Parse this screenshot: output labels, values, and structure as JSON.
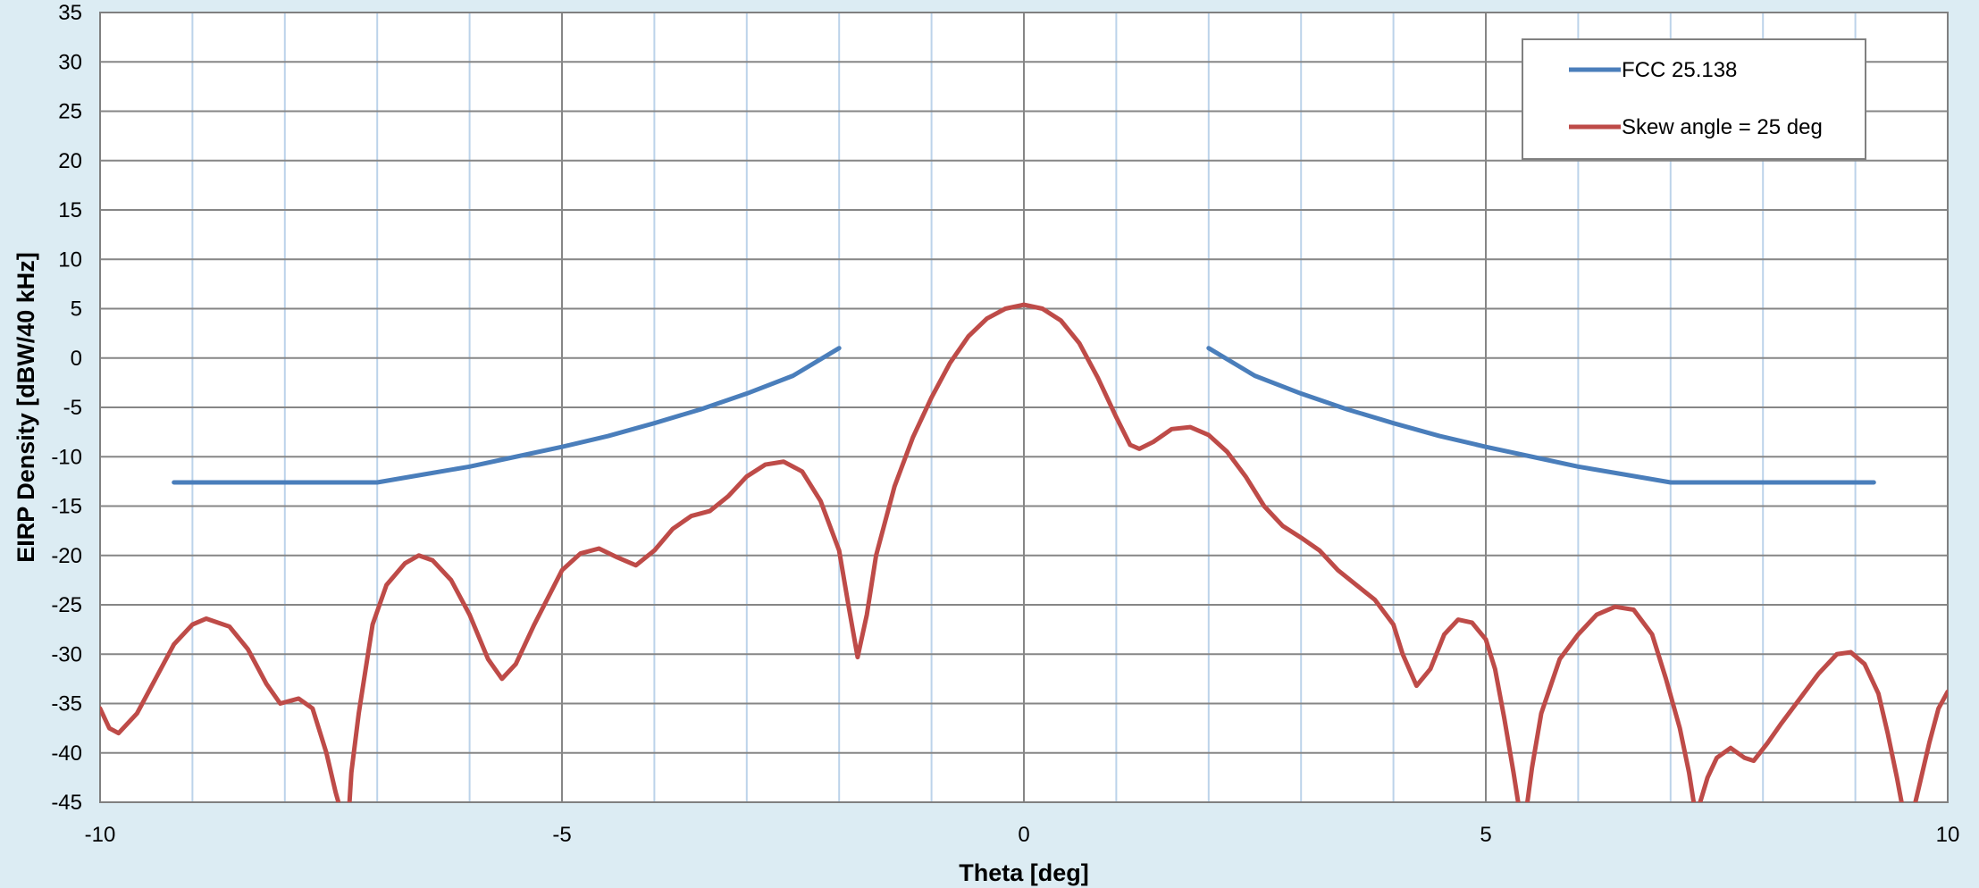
{
  "chart_data": {
    "type": "line",
    "title": "",
    "xlabel": "Theta [deg]",
    "ylabel": "EIRP Density [dBW/40 kHz]",
    "xlim": [
      -10,
      10
    ],
    "ylim": [
      -45,
      35
    ],
    "x_ticks": [
      -10,
      -5,
      0,
      5,
      10
    ],
    "x_minor_step": 1,
    "y_ticks": [
      -45,
      -40,
      -35,
      -30,
      -25,
      -20,
      -15,
      -10,
      -5,
      0,
      5,
      10,
      15,
      20,
      25,
      30,
      35
    ],
    "grid": true,
    "legend_position": "top-right",
    "series": [
      {
        "name": "FCC 25.138",
        "color": "#4a7ebb",
        "segments": [
          [
            [
              -9.2,
              -12.6
            ],
            [
              -7.0,
              -12.6
            ],
            [
              -6.5,
              -11.8
            ],
            [
              -6.0,
              -11.0
            ],
            [
              -5.5,
              -10.0
            ],
            [
              -5.0,
              -9.0
            ],
            [
              -4.5,
              -7.9
            ],
            [
              -4.0,
              -6.6
            ],
            [
              -3.5,
              -5.2
            ],
            [
              -3.0,
              -3.6
            ],
            [
              -2.5,
              -1.8
            ],
            [
              -2.0,
              1.0
            ]
          ],
          [
            [
              2.0,
              1.0
            ],
            [
              2.5,
              -1.8
            ],
            [
              3.0,
              -3.6
            ],
            [
              3.5,
              -5.2
            ],
            [
              4.0,
              -6.6
            ],
            [
              4.5,
              -7.9
            ],
            [
              5.0,
              -9.0
            ],
            [
              5.5,
              -10.0
            ],
            [
              6.0,
              -11.0
            ],
            [
              6.5,
              -11.8
            ],
            [
              7.0,
              -12.6
            ],
            [
              9.2,
              -12.6
            ]
          ]
        ]
      },
      {
        "name": "Skew angle = 25 deg",
        "color": "#be4b48",
        "segments": [
          [
            [
              -10.0,
              -35.5
            ],
            [
              -9.9,
              -37.5
            ],
            [
              -9.8,
              -38.0
            ],
            [
              -9.6,
              -36.0
            ],
            [
              -9.4,
              -32.5
            ],
            [
              -9.2,
              -29.0
            ],
            [
              -9.0,
              -27.0
            ],
            [
              -8.85,
              -26.4
            ],
            [
              -8.6,
              -27.2
            ],
            [
              -8.4,
              -29.5
            ],
            [
              -8.2,
              -33.0
            ],
            [
              -8.05,
              -35.0
            ],
            [
              -7.85,
              -34.5
            ],
            [
              -7.7,
              -35.5
            ],
            [
              -7.55,
              -40.0
            ],
            [
              -7.45,
              -44.0
            ],
            [
              -7.42,
              -45.0
            ]
          ],
          [
            [
              -7.3,
              -45.0
            ],
            [
              -7.28,
              -42.0
            ],
            [
              -7.2,
              -36.0
            ],
            [
              -7.05,
              -27.0
            ],
            [
              -6.9,
              -23.0
            ],
            [
              -6.7,
              -20.8
            ],
            [
              -6.55,
              -20.0
            ],
            [
              -6.4,
              -20.5
            ],
            [
              -6.2,
              -22.5
            ],
            [
              -6.0,
              -26.0
            ],
            [
              -5.8,
              -30.5
            ],
            [
              -5.65,
              -32.5
            ],
            [
              -5.5,
              -31.0
            ],
            [
              -5.3,
              -27.0
            ],
            [
              -5.0,
              -21.5
            ],
            [
              -4.8,
              -19.8
            ],
            [
              -4.6,
              -19.3
            ],
            [
              -4.4,
              -20.2
            ],
            [
              -4.2,
              -21.0
            ],
            [
              -4.0,
              -19.5
            ],
            [
              -3.8,
              -17.3
            ],
            [
              -3.6,
              -16.0
            ],
            [
              -3.4,
              -15.5
            ],
            [
              -3.2,
              -14.0
            ],
            [
              -3.0,
              -12.0
            ],
            [
              -2.8,
              -10.8
            ],
            [
              -2.6,
              -10.5
            ],
            [
              -2.4,
              -11.5
            ],
            [
              -2.2,
              -14.5
            ],
            [
              -2.0,
              -19.5
            ],
            [
              -1.9,
              -25.0
            ],
            [
              -1.8,
              -30.3
            ],
            [
              -1.7,
              -26.0
            ],
            [
              -1.6,
              -20.0
            ],
            [
              -1.4,
              -13.0
            ],
            [
              -1.2,
              -8.0
            ],
            [
              -1.0,
              -4.0
            ],
            [
              -0.8,
              -0.5
            ],
            [
              -0.6,
              2.2
            ],
            [
              -0.4,
              4.0
            ],
            [
              -0.2,
              5.0
            ],
            [
              0.0,
              5.4
            ],
            [
              0.2,
              5.0
            ],
            [
              0.4,
              3.8
            ],
            [
              0.6,
              1.5
            ],
            [
              0.8,
              -2.0
            ],
            [
              1.0,
              -6.0
            ],
            [
              1.15,
              -8.8
            ],
            [
              1.25,
              -9.2
            ],
            [
              1.4,
              -8.5
            ],
            [
              1.6,
              -7.2
            ],
            [
              1.8,
              -7.0
            ],
            [
              2.0,
              -7.8
            ],
            [
              2.2,
              -9.5
            ],
            [
              2.4,
              -12.0
            ],
            [
              2.6,
              -15.0
            ],
            [
              2.8,
              -17.0
            ],
            [
              3.0,
              -18.2
            ],
            [
              3.2,
              -19.5
            ],
            [
              3.4,
              -21.5
            ],
            [
              3.6,
              -23.0
            ],
            [
              3.8,
              -24.5
            ],
            [
              4.0,
              -27.0
            ],
            [
              4.1,
              -30.0
            ],
            [
              4.25,
              -33.2
            ],
            [
              4.4,
              -31.5
            ],
            [
              4.55,
              -28.0
            ],
            [
              4.7,
              -26.5
            ],
            [
              4.85,
              -26.8
            ],
            [
              5.0,
              -28.5
            ],
            [
              5.1,
              -31.5
            ],
            [
              5.2,
              -36.5
            ],
            [
              5.3,
              -42.0
            ],
            [
              5.35,
              -45.0
            ]
          ],
          [
            [
              5.45,
              -45.0
            ],
            [
              5.5,
              -41.5
            ],
            [
              5.6,
              -36.0
            ],
            [
              5.8,
              -30.5
            ],
            [
              6.0,
              -28.0
            ],
            [
              6.2,
              -26.0
            ],
            [
              6.4,
              -25.2
            ],
            [
              6.6,
              -25.5
            ],
            [
              6.8,
              -28.0
            ],
            [
              6.95,
              -32.5
            ],
            [
              7.1,
              -37.5
            ],
            [
              7.2,
              -42.0
            ],
            [
              7.25,
              -45.0
            ]
          ],
          [
            [
              7.32,
              -45.0
            ],
            [
              7.4,
              -42.5
            ],
            [
              7.5,
              -40.5
            ],
            [
              7.65,
              -39.5
            ],
            [
              7.8,
              -40.5
            ],
            [
              7.9,
              -40.8
            ],
            [
              8.05,
              -39.0
            ],
            [
              8.2,
              -37.0
            ],
            [
              8.4,
              -34.5
            ],
            [
              8.6,
              -32.0
            ],
            [
              8.8,
              -30.0
            ],
            [
              8.95,
              -29.8
            ],
            [
              9.1,
              -31.0
            ],
            [
              9.25,
              -34.0
            ],
            [
              9.35,
              -38.0
            ],
            [
              9.45,
              -42.5
            ],
            [
              9.5,
              -45.0
            ]
          ],
          [
            [
              9.65,
              -45.0
            ],
            [
              9.7,
              -43.0
            ],
            [
              9.8,
              -39.0
            ],
            [
              9.9,
              -35.5
            ],
            [
              10.0,
              -33.8
            ]
          ]
        ]
      }
    ]
  }
}
